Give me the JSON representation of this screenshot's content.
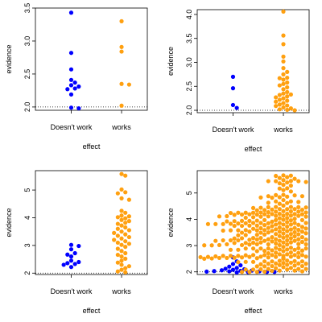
{
  "colors": {
    "doesnt_work": "#0000ff",
    "works": "#ffa010",
    "axes": "#000000"
  },
  "chart_data": [
    {
      "type": "scatter",
      "layout": "beeswarm",
      "xlabel": "effect",
      "ylabel": "evidence",
      "categories": [
        "Doesn't work",
        "works"
      ],
      "ylim": [
        1.95,
        3.5
      ],
      "yticks": [
        2.0,
        2.5,
        3.0,
        3.5
      ],
      "ytick_labels": [
        "2.0",
        "2.5",
        "3.0",
        "3.5"
      ],
      "reference_line": {
        "y": 2.0,
        "style": "dotted"
      },
      "series": [
        {
          "values": [
            3.43,
            2.82,
            2.57,
            2.41,
            2.37,
            2.33,
            2.31,
            2.28,
            2.27,
            2.19,
            1.99,
            1.98
          ]
        },
        {
          "values": [
            3.3,
            2.91,
            2.84,
            2.35,
            2.34,
            2.02
          ]
        }
      ]
    },
    {
      "type": "scatter",
      "layout": "beeswarm",
      "xlabel": "effect",
      "ylabel": "evidence",
      "categories": [
        "Doesn't work",
        "works"
      ],
      "ylim": [
        1.95,
        4.1
      ],
      "yticks": [
        2.0,
        2.5,
        3.0,
        3.5,
        4.0
      ],
      "ytick_labels": [
        "2.0",
        "2.5",
        "3.0",
        "3.5",
        "4.0"
      ],
      "reference_line": {
        "y": 2.0,
        "style": "dotted"
      },
      "series": [
        {
          "values": [
            2.7,
            2.46,
            2.11,
            2.05
          ]
        },
        {
          "values": [
            4.06,
            3.56,
            3.38,
            3.12,
            3.02,
            2.88,
            2.8,
            2.75,
            2.68,
            2.67,
            2.64,
            2.58,
            2.55,
            2.52,
            2.48,
            2.44,
            2.38,
            2.35,
            2.33,
            2.32,
            2.29,
            2.27,
            2.25,
            2.22,
            2.2,
            2.18,
            2.15,
            2.12,
            2.1,
            2.09,
            2.06,
            2.04,
            2.02,
            2.01,
            2.0
          ]
        }
      ]
    },
    {
      "type": "scatter",
      "layout": "beeswarm",
      "xlabel": "effect",
      "ylabel": "evidence",
      "categories": [
        "Doesn't work",
        "works"
      ],
      "ylim": [
        1.95,
        5.7
      ],
      "yticks": [
        2,
        3,
        4,
        5
      ],
      "ytick_labels": [
        "2",
        "3",
        "4",
        "5"
      ],
      "reference_line": {
        "y": 2.0,
        "style": "dotted"
      },
      "series": [
        {
          "values": [
            3.02,
            2.98,
            2.86,
            2.72,
            2.67,
            2.6,
            2.45,
            2.4,
            2.36,
            2.33,
            2.3,
            2.22
          ]
        },
        {
          "values": [
            5.58,
            5.52,
            5.02,
            4.92,
            4.88,
            4.7,
            4.65,
            4.25,
            4.18,
            4.08,
            4.05,
            4.02,
            3.98,
            3.92,
            3.88,
            3.82,
            3.78,
            3.72,
            3.65,
            3.6,
            3.55,
            3.5,
            3.45,
            3.4,
            3.35,
            3.3,
            3.25,
            3.2,
            3.15,
            3.1,
            3.06,
            3.02,
            2.95,
            2.88,
            2.8,
            2.72,
            2.66,
            2.6,
            2.52,
            2.45,
            2.38,
            2.3,
            2.25,
            2.18,
            2.12,
            2.06,
            2.03
          ]
        }
      ]
    },
    {
      "type": "scatter",
      "layout": "beeswarm",
      "xlabel": "effect",
      "ylabel": "evidence",
      "categories": [
        "Doesn't work",
        "works"
      ],
      "ylim": [
        1.9,
        5.85
      ],
      "yticks": [
        2,
        3,
        4,
        5
      ],
      "ytick_labels": [
        "2",
        "3",
        "4",
        "5"
      ],
      "reference_line": {
        "y": 2.0,
        "style": "dotted"
      },
      "distribution_note": "works group has roughly 300 points spread 2.0–5.7, densest 2.5–4.0",
      "series": [
        {
          "values": [
            2.55,
            2.4,
            2.3,
            2.25,
            2.2,
            2.15,
            2.12,
            2.1,
            2.08,
            2.06,
            2.05,
            2.04,
            2.03,
            2.02,
            2.02,
            2.01,
            2.0,
            2.0,
            1.99,
            1.98
          ]
        },
        {
          "generated": true,
          "count": 300,
          "min": 2.0,
          "max": 5.72,
          "mode": 3.3
        }
      ]
    }
  ]
}
